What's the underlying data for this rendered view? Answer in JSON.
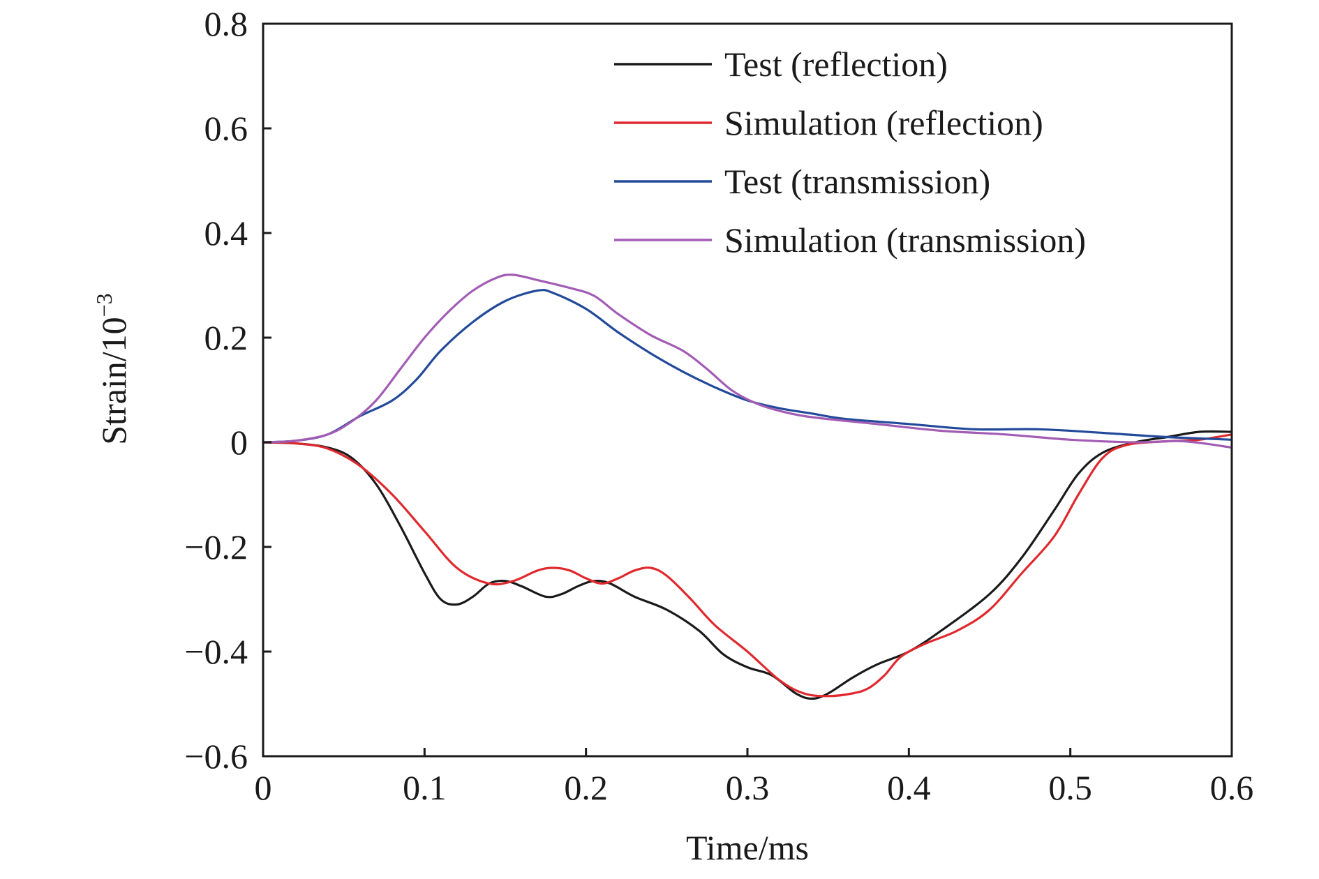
{
  "chart_data": {
    "type": "line",
    "xlabel": "Time/ms",
    "ylabel_base": "Strain/10",
    "ylabel_exponent": "−3",
    "xlim": [
      0,
      0.6
    ],
    "ylim": [
      -0.6,
      0.8
    ],
    "grid": false,
    "legend_position": "top-right",
    "x_ticks": [
      {
        "value": 0,
        "label": "0"
      },
      {
        "value": 0.1,
        "label": "0.1"
      },
      {
        "value": 0.2,
        "label": "0.2"
      },
      {
        "value": 0.3,
        "label": "0.3"
      },
      {
        "value": 0.4,
        "label": "0.4"
      },
      {
        "value": 0.5,
        "label": "0.5"
      },
      {
        "value": 0.6,
        "label": "0.6"
      }
    ],
    "y_ticks": [
      {
        "value": -0.6,
        "label": "−0.6"
      },
      {
        "value": -0.4,
        "label": "−0.4"
      },
      {
        "value": -0.2,
        "label": "−0.2"
      },
      {
        "value": 0,
        "label": "0"
      },
      {
        "value": 0.2,
        "label": "0.2"
      },
      {
        "value": 0.4,
        "label": "0.4"
      },
      {
        "value": 0.6,
        "label": "0.6"
      },
      {
        "value": 0.8,
        "label": "0.8"
      }
    ],
    "series": [
      {
        "name": "Test (reflection)",
        "color": "#1a1a1a",
        "points": [
          [
            0,
            0
          ],
          [
            0.02,
            -0.002
          ],
          [
            0.04,
            -0.01
          ],
          [
            0.055,
            -0.03
          ],
          [
            0.07,
            -0.08
          ],
          [
            0.085,
            -0.16
          ],
          [
            0.1,
            -0.25
          ],
          [
            0.11,
            -0.3
          ],
          [
            0.12,
            -0.31
          ],
          [
            0.13,
            -0.295
          ],
          [
            0.14,
            -0.27
          ],
          [
            0.15,
            -0.265
          ],
          [
            0.16,
            -0.275
          ],
          [
            0.175,
            -0.295
          ],
          [
            0.185,
            -0.29
          ],
          [
            0.195,
            -0.275
          ],
          [
            0.205,
            -0.265
          ],
          [
            0.215,
            -0.27
          ],
          [
            0.23,
            -0.295
          ],
          [
            0.25,
            -0.32
          ],
          [
            0.27,
            -0.36
          ],
          [
            0.285,
            -0.405
          ],
          [
            0.3,
            -0.43
          ],
          [
            0.315,
            -0.445
          ],
          [
            0.33,
            -0.48
          ],
          [
            0.34,
            -0.49
          ],
          [
            0.35,
            -0.48
          ],
          [
            0.365,
            -0.45
          ],
          [
            0.38,
            -0.425
          ],
          [
            0.4,
            -0.4
          ],
          [
            0.42,
            -0.36
          ],
          [
            0.45,
            -0.29
          ],
          [
            0.47,
            -0.22
          ],
          [
            0.49,
            -0.13
          ],
          [
            0.505,
            -0.06
          ],
          [
            0.52,
            -0.02
          ],
          [
            0.54,
            0
          ],
          [
            0.56,
            0.01
          ],
          [
            0.58,
            0.02
          ],
          [
            0.6,
            0.02
          ]
        ]
      },
      {
        "name": "Simulation (reflection)",
        "color": "#e0292e",
        "points": [
          [
            0,
            0
          ],
          [
            0.02,
            -0.002
          ],
          [
            0.04,
            -0.012
          ],
          [
            0.06,
            -0.045
          ],
          [
            0.08,
            -0.1
          ],
          [
            0.1,
            -0.17
          ],
          [
            0.12,
            -0.24
          ],
          [
            0.14,
            -0.27
          ],
          [
            0.155,
            -0.265
          ],
          [
            0.17,
            -0.245
          ],
          [
            0.18,
            -0.24
          ],
          [
            0.19,
            -0.245
          ],
          [
            0.2,
            -0.26
          ],
          [
            0.21,
            -0.27
          ],
          [
            0.22,
            -0.26
          ],
          [
            0.23,
            -0.245
          ],
          [
            0.24,
            -0.24
          ],
          [
            0.25,
            -0.255
          ],
          [
            0.265,
            -0.3
          ],
          [
            0.28,
            -0.35
          ],
          [
            0.3,
            -0.4
          ],
          [
            0.32,
            -0.455
          ],
          [
            0.335,
            -0.48
          ],
          [
            0.35,
            -0.485
          ],
          [
            0.365,
            -0.48
          ],
          [
            0.375,
            -0.47
          ],
          [
            0.385,
            -0.445
          ],
          [
            0.395,
            -0.41
          ],
          [
            0.41,
            -0.385
          ],
          [
            0.43,
            -0.36
          ],
          [
            0.45,
            -0.32
          ],
          [
            0.47,
            -0.25
          ],
          [
            0.49,
            -0.18
          ],
          [
            0.505,
            -0.1
          ],
          [
            0.52,
            -0.03
          ],
          [
            0.535,
            -0.005
          ],
          [
            0.56,
            0.002
          ],
          [
            0.58,
            0.005
          ],
          [
            0.6,
            0.015
          ]
        ]
      },
      {
        "name": "Test (transmission)",
        "color": "#234a9a",
        "points": [
          [
            0,
            0
          ],
          [
            0.02,
            0.003
          ],
          [
            0.04,
            0.015
          ],
          [
            0.06,
            0.05
          ],
          [
            0.08,
            0.08
          ],
          [
            0.095,
            0.12
          ],
          [
            0.11,
            0.175
          ],
          [
            0.13,
            0.23
          ],
          [
            0.15,
            0.27
          ],
          [
            0.17,
            0.29
          ],
          [
            0.18,
            0.285
          ],
          [
            0.2,
            0.255
          ],
          [
            0.22,
            0.21
          ],
          [
            0.24,
            0.17
          ],
          [
            0.26,
            0.135
          ],
          [
            0.28,
            0.105
          ],
          [
            0.3,
            0.08
          ],
          [
            0.32,
            0.065
          ],
          [
            0.34,
            0.055
          ],
          [
            0.36,
            0.045
          ],
          [
            0.4,
            0.035
          ],
          [
            0.44,
            0.025
          ],
          [
            0.48,
            0.025
          ],
          [
            0.52,
            0.018
          ],
          [
            0.56,
            0.01
          ],
          [
            0.6,
            0.005
          ]
        ]
      },
      {
        "name": "Simulation (transmission)",
        "color": "#a25cb4",
        "points": [
          [
            0,
            0
          ],
          [
            0.02,
            0.003
          ],
          [
            0.04,
            0.015
          ],
          [
            0.055,
            0.04
          ],
          [
            0.07,
            0.08
          ],
          [
            0.085,
            0.14
          ],
          [
            0.1,
            0.2
          ],
          [
            0.115,
            0.25
          ],
          [
            0.13,
            0.29
          ],
          [
            0.145,
            0.315
          ],
          [
            0.155,
            0.32
          ],
          [
            0.17,
            0.31
          ],
          [
            0.19,
            0.295
          ],
          [
            0.205,
            0.28
          ],
          [
            0.22,
            0.245
          ],
          [
            0.24,
            0.205
          ],
          [
            0.26,
            0.175
          ],
          [
            0.275,
            0.14
          ],
          [
            0.29,
            0.1
          ],
          [
            0.305,
            0.075
          ],
          [
            0.32,
            0.06
          ],
          [
            0.34,
            0.048
          ],
          [
            0.38,
            0.035
          ],
          [
            0.42,
            0.022
          ],
          [
            0.46,
            0.015
          ],
          [
            0.5,
            0.005
          ],
          [
            0.54,
            0
          ],
          [
            0.57,
            0.002
          ],
          [
            0.6,
            -0.01
          ]
        ]
      }
    ]
  }
}
